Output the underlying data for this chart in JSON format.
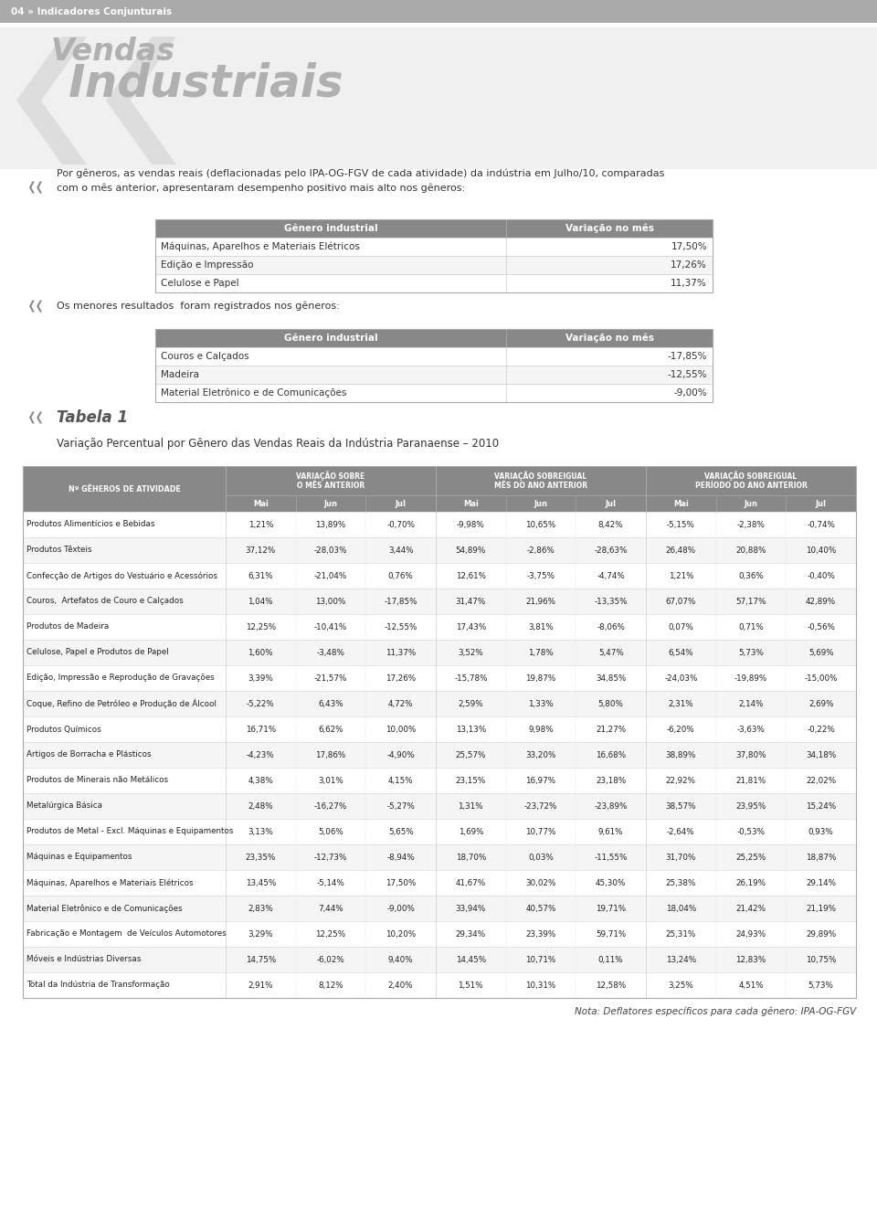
{
  "page_bg": "#ffffff",
  "header_bg": "#888888",
  "header_text": "04 » Indicadores Conjunturais",
  "title_vendas": "Vendas",
  "title_industriais": "Industriais",
  "intro_text": "Por gêneros, as vendas reais (deflacionadas pelo IPA-OG-FGV de cada atividade) da indústria em Julho/10, comparadas\ncom o mês anterior, apresentaram desempenho positivo mais alto nos gêneros:",
  "table1_header": [
    "Gênero industrial",
    "Variação no mês"
  ],
  "table1_rows": [
    [
      "Máquinas, Aparelhos e Materiais Elétricos",
      "17,50%"
    ],
    [
      "Edição e Impressão",
      "17,26%"
    ],
    [
      "Celulose e Papel",
      "11,37%"
    ]
  ],
  "menores_text": "Os menores resultados  foram registrados nos gêneros:",
  "table2_header": [
    "Gênero industrial",
    "Variação no mês"
  ],
  "table2_rows": [
    [
      "Couros e Calçados",
      "-17,85%"
    ],
    [
      "Madeira",
      "-12,55%"
    ],
    [
      "Material Eletrônico e de Comunicações",
      "-9,00%"
    ]
  ],
  "tabela1_title": "Tabela 1",
  "tabela1_subtitle": "Variação Percentual por Gênero das Vendas Reais da Indústria Paranaense – 2010",
  "main_table_col1_line1": "Nº GÊНEROS DE ATIVIDADE",
  "main_table_headers_g1_line1": "VARIAÇÃO SOBRE",
  "main_table_headers_g1_line2": "O MÊS ANTERIOR",
  "main_table_headers_g2_line1": "VARIAÇÃO SOBREIGUAL",
  "main_table_headers_g2_line2": "MÊS DO ANO ANTERIOR",
  "main_table_headers_g3_line1": "VARIAÇÃO SOBREIGUAL",
  "main_table_headers_g3_line2": "PERÍODO DO ANO ANTERIOR",
  "months": [
    "Mai",
    "Jun",
    "Jul"
  ],
  "main_table_rows": [
    [
      "Produtos Alimentícios e Bebidas",
      "1,21%",
      "13,89%",
      "-0,70%",
      "-9,98%",
      "10,65%",
      "8,42%",
      "-5,15%",
      "-2,38%",
      "-0,74%"
    ],
    [
      "Produtos Têxteis",
      "37,12%",
      "-28,03%",
      "3,44%",
      "54,89%",
      "-2,86%",
      "-28,63%",
      "26,48%",
      "20,88%",
      "10,40%"
    ],
    [
      "Confecção de Artigos do Vestuário e Acessórios",
      "6,31%",
      "-21,04%",
      "0,76%",
      "12,61%",
      "-3,75%",
      "-4,74%",
      "1,21%",
      "0,36%",
      "-0,40%"
    ],
    [
      "Couros,  Artefatos de Couro e Calçados",
      "1,04%",
      "13,00%",
      "-17,85%",
      "31,47%",
      "21,96%",
      "-13,35%",
      "67,07%",
      "57,17%",
      "42,89%"
    ],
    [
      "Produtos de Madeira",
      "12,25%",
      "-10,41%",
      "-12,55%",
      "17,43%",
      "3,81%",
      "-8,06%",
      "0,07%",
      "0,71%",
      "-0,56%"
    ],
    [
      "Celulose, Papel e Produtos de Papel",
      "1,60%",
      "-3,48%",
      "11,37%",
      "3,52%",
      "1,78%",
      "5,47%",
      "6,54%",
      "5,73%",
      "5,69%"
    ],
    [
      "Edição, Impressão e Reprodução de Gravações",
      "3,39%",
      "-21,57%",
      "17,26%",
      "-15,78%",
      "19,87%",
      "34,85%",
      "-24,03%",
      "-19,89%",
      "-15,00%"
    ],
    [
      "Coque, Refino de Petróleo e Produção de Álcool",
      "-5,22%",
      "6,43%",
      "4,72%",
      "2,59%",
      "1,33%",
      "5,80%",
      "2,31%",
      "2,14%",
      "2,69%"
    ],
    [
      "Produtos Químicos",
      "16,71%",
      "6,62%",
      "10,00%",
      "13,13%",
      "9,98%",
      "21,27%",
      "-6,20%",
      "-3,63%",
      "-0,22%"
    ],
    [
      "Artigos de Borracha e Plásticos",
      "-4,23%",
      "17,86%",
      "-4,90%",
      "25,57%",
      "33,20%",
      "16,68%",
      "38,89%",
      "37,80%",
      "34,18%"
    ],
    [
      "Produtos de Minerais não Metálicos",
      "4,38%",
      "3,01%",
      "4,15%",
      "23,15%",
      "16,97%",
      "23,18%",
      "22,92%",
      "21,81%",
      "22,02%"
    ],
    [
      "Metalúrgica Básica",
      "2,48%",
      "-16,27%",
      "-5,27%",
      "1,31%",
      "-23,72%",
      "-23,89%",
      "38,57%",
      "23,95%",
      "15,24%"
    ],
    [
      "Produtos de Metal - Excl. Máquinas e Equipamentos",
      "3,13%",
      "5,06%",
      "5,65%",
      "1,69%",
      "10,77%",
      "9,61%",
      "-2,64%",
      "-0,53%",
      "0,93%"
    ],
    [
      "Máquinas e Equipamentos",
      "23,35%",
      "-12,73%",
      "-8,94%",
      "18,70%",
      "0,03%",
      "-11,55%",
      "31,70%",
      "25,25%",
      "18,87%"
    ],
    [
      "Máquinas, Aparelhos e Materiais Elétricos",
      "13,45%",
      "-5,14%",
      "17,50%",
      "41,67%",
      "30,02%",
      "45,30%",
      "25,38%",
      "26,19%",
      "29,14%"
    ],
    [
      "Material Eletrônico e de Comunicações",
      "2,83%",
      "7,44%",
      "-9,00%",
      "33,94%",
      "40,57%",
      "19,71%",
      "18,04%",
      "21,42%",
      "21,19%"
    ],
    [
      "Fabricação e Montagem  de Veículos Automotores",
      "3,29%",
      "12,25%",
      "10,20%",
      "29,34%",
      "23,39%",
      "59,71%",
      "25,31%",
      "24,93%",
      "29,89%"
    ],
    [
      "Móveis e Indústrias Diversas",
      "14,75%",
      "-6,02%",
      "9,40%",
      "14,45%",
      "10,71%",
      "0,11%",
      "13,24%",
      "12,83%",
      "10,75%"
    ],
    [
      "Total da Indústria de Transformação",
      "2,91%",
      "8,12%",
      "2,40%",
      "1,51%",
      "10,31%",
      "12,58%",
      "3,25%",
      "4,51%",
      "5,73%"
    ]
  ],
  "nota": "Nota: Deflatores específicos para cada gênero: IPA-OG-FGV"
}
